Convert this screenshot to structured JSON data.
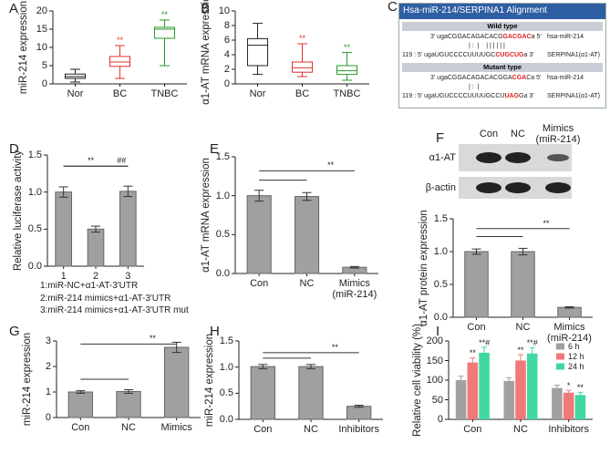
{
  "chart_data": [
    {
      "label": "A",
      "type": "box",
      "ylabel": "miR-214 expression",
      "categories": [
        "Nor",
        "BC",
        "TNBC"
      ],
      "colors": [
        "#222222",
        "#e0302a",
        "#2a9a2a"
      ],
      "min": [
        0.5,
        1.5,
        5
      ],
      "q1": [
        1.5,
        4.8,
        12.5
      ],
      "median": [
        2,
        6,
        15
      ],
      "q3": [
        2.7,
        7.5,
        15.5
      ],
      "max": [
        4,
        10.5,
        17.5
      ],
      "significance": [
        null,
        "**",
        "**"
      ],
      "ylim": [
        0,
        20
      ],
      "yticks": [
        0,
        5,
        10,
        15,
        20
      ]
    },
    {
      "label": "B",
      "type": "box",
      "ylabel": "α1-AT mRNA expression",
      "categories": [
        "Nor",
        "BC",
        "TNBC"
      ],
      "colors": [
        "#222222",
        "#e0302a",
        "#2a9a2a"
      ],
      "min": [
        1.3,
        1.0,
        0.5
      ],
      "q1": [
        2.5,
        1.6,
        1.3
      ],
      "median": [
        5.3,
        2.2,
        1.8
      ],
      "q3": [
        6.2,
        3.0,
        2.5
      ],
      "max": [
        8.3,
        5.5,
        4.3
      ],
      "significance": [
        null,
        "**",
        "**"
      ],
      "ylim": [
        0,
        10
      ],
      "yticks": [
        0,
        2,
        4,
        6,
        8,
        10
      ]
    },
    {
      "label": "D",
      "type": "bar",
      "ylabel": "Relative luciferase activity",
      "categories": [
        "1",
        "2",
        "3"
      ],
      "values": [
        1,
        0.5,
        1.01
      ],
      "errors": [
        0.07,
        0.04,
        0.07
      ],
      "color": "#a0a0a0",
      "ylim": [
        0,
        1.5
      ],
      "yticks": [
        {
          "value": 0,
          "label": "0.0"
        },
        0.5,
        {
          "value": 1,
          "label": "1.0"
        },
        1.5
      ],
      "annotations": [
        "**",
        "##"
      ],
      "notes": [
        "1:miR-NC+α1-AT-3′UTR",
        "2:miR-214 mimics+α1-AT-3′UTR",
        "3:miR-214 mimics+α1-AT-3′UTR mut"
      ]
    },
    {
      "label": "E",
      "type": "bar",
      "ylabel": "α1-AT mRNA expression",
      "categories": [
        "Con",
        "NC",
        "Mimics\n(miR-214)"
      ],
      "values": [
        1,
        0.99,
        0.08
      ],
      "errors": [
        0.07,
        0.05,
        0.01
      ],
      "color": "#a0a0a0",
      "ylim": [
        0,
        1.5
      ],
      "yticks": [
        {
          "value": 0,
          "label": "0.0"
        },
        0.5,
        {
          "value": 1,
          "label": "1.0"
        },
        1.5
      ],
      "annotations": [
        "**"
      ]
    },
    {
      "label": "F",
      "type": "bar",
      "ylabel": "α1-AT protein expression",
      "categories": [
        "Con",
        "NC",
        "Mimics\n(miR-214)"
      ],
      "values": [
        1,
        1,
        0.15
      ],
      "errors": [
        0.04,
        0.05,
        0.01
      ],
      "color": "#a0a0a0",
      "ylim": [
        0,
        1.5
      ],
      "yticks": [
        {
          "value": 0,
          "label": "0.0"
        },
        0.5,
        {
          "value": 1,
          "label": "1.0"
        },
        1.5
      ],
      "annotations": [
        "**"
      ],
      "blot_labels": [
        "α1-AT",
        "β-actin"
      ]
    },
    {
      "label": "G",
      "type": "bar",
      "ylabel": "miR-214 expression",
      "categories": [
        "Con",
        "NC",
        "Mimics"
      ],
      "values": [
        1,
        1.02,
        2.75
      ],
      "errors": [
        0.05,
        0.07,
        0.2
      ],
      "color": "#a0a0a0",
      "ylim": [
        0,
        3
      ],
      "yticks": [
        0,
        1,
        2,
        3
      ],
      "annotations": [
        "**"
      ]
    },
    {
      "label": "H",
      "type": "bar",
      "ylabel": "miR-214 expression",
      "categories": [
        "Con",
        "NC",
        "Inhibitors"
      ],
      "values": [
        1.01,
        1.01,
        0.25
      ],
      "errors": [
        0.04,
        0.04,
        0.02
      ],
      "color": "#a0a0a0",
      "ylim": [
        0,
        1.5
      ],
      "yticks": [
        {
          "value": 0,
          "label": "0.0"
        },
        0.5,
        {
          "value": 1,
          "label": "1.0"
        },
        1.5
      ],
      "annotations": [
        "**"
      ]
    },
    {
      "label": "I",
      "type": "grouped_bar",
      "ylabel": "Relative cell viability (%)",
      "categories": [
        "Con",
        "NC",
        "Inhibitors"
      ],
      "legend": "upper right",
      "series": [
        {
          "name": "6 h",
          "color": "#a0a0a0",
          "values": [
            100,
            98,
            80
          ],
          "errors": [
            10,
            8,
            7
          ]
        },
        {
          "name": "12 h",
          "color": "#f07878",
          "values": [
            145,
            150,
            68
          ],
          "errors": [
            12,
            15,
            6
          ],
          "significance": [
            "**",
            "**",
            "*"
          ]
        },
        {
          "name": "24 h",
          "color": "#3fd8a0",
          "values": [
            170,
            168,
            62
          ],
          "errors": [
            14,
            15,
            7
          ],
          "significance": [
            "**#",
            "**#",
            "**"
          ]
        }
      ],
      "ylim": [
        0,
        200
      ],
      "yticks": [
        0,
        50,
        100,
        150,
        200
      ]
    }
  ],
  "alignment": {
    "label": "C",
    "title": "Hsa-miR-214/SERPINA1 Alignment",
    "wild_type": {
      "header": "Wild type",
      "mirna": {
        "prefix": "3' ugaCGGACAGACACG",
        "site": "GACGAC",
        "suffix": "a 5'",
        "name": "hsa-miR-214"
      },
      "pairing": "| :  |    | | | | | |",
      "target": {
        "prefix": "119 : 5' ugaUGUCCCCUUUUGC",
        "site": "CUGCUG",
        "suffix": "a 3'",
        "name": "SERPINA1(α1-AT)"
      }
    },
    "mutant_type": {
      "header": "Mutant type",
      "mirna": {
        "prefix": "3' ugaCGGACAGACACGGA",
        "site": "CGA",
        "suffix": "Ca 5'",
        "name": "hsa-miR-214"
      },
      "pairing": "| :  |",
      "target": {
        "prefix": "119 : 5' ugaUGUCCCCUUUUGCCU",
        "site": "UAG",
        "suffix": "Ga 3'",
        "name": "SERPINA1(α1-AT)"
      }
    }
  }
}
